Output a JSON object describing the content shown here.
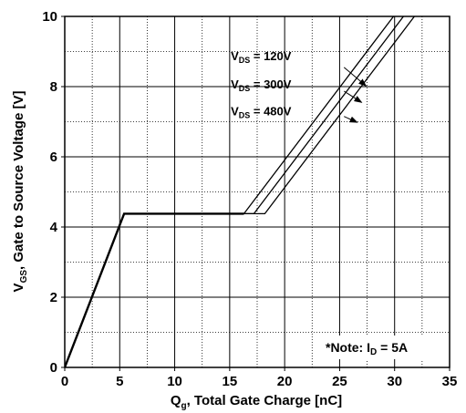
{
  "chart_data": {
    "type": "line",
    "xlabel": {
      "main": "Q",
      "sub": "g",
      "rest": ", Total Gate Charge [nC]"
    },
    "ylabel": {
      "main": "V",
      "sub": "GS",
      "rest": ", Gate to Source Voltage [V]"
    },
    "xlim": [
      0,
      35
    ],
    "ylim": [
      0,
      10
    ],
    "xticks": [
      0,
      5,
      10,
      15,
      20,
      25,
      30,
      35
    ],
    "yticks": [
      0,
      2,
      4,
      6,
      8,
      10
    ],
    "xminor": [
      2.5,
      7.5,
      12.5,
      17.5,
      22.5,
      27.5,
      32.5
    ],
    "yminor": [
      1,
      3,
      5,
      7,
      9
    ],
    "grid": true,
    "series": [
      {
        "name": "120V",
        "x": [
          0,
          5.4,
          16.3,
          29.9
        ],
        "y": [
          0,
          4.38,
          4.38,
          10
        ]
      },
      {
        "name": "300V",
        "x": [
          0,
          5.4,
          17.2,
          30.8
        ],
        "y": [
          0,
          4.38,
          4.38,
          10
        ]
      },
      {
        "name": "480V",
        "x": [
          0,
          5.4,
          18.2,
          31.8
        ],
        "y": [
          0,
          4.38,
          4.38,
          10
        ]
      }
    ],
    "annotations": [
      {
        "prefix": "V",
        "sub": "DS",
        "value": " = 120V",
        "text_at": [
          15.1,
          8.75
        ],
        "arrow_from": [
          25.4,
          8.55
        ],
        "arrow_to": [
          27.4,
          8.02
        ]
      },
      {
        "prefix": "V",
        "sub": "DS",
        "value": " = 300V",
        "text_at": [
          15.1,
          7.95
        ],
        "arrow_from": [
          25.4,
          7.87
        ],
        "arrow_to": [
          27.0,
          7.55
        ]
      },
      {
        "prefix": "V",
        "sub": "DS",
        "value": " = 480V",
        "text_at": [
          15.1,
          7.18
        ],
        "arrow_from": [
          25.4,
          7.15
        ],
        "arrow_to": [
          26.6,
          6.98
        ]
      }
    ],
    "note": {
      "prefix": "*Note: I",
      "sub": "D",
      "value": " = 5A"
    }
  }
}
